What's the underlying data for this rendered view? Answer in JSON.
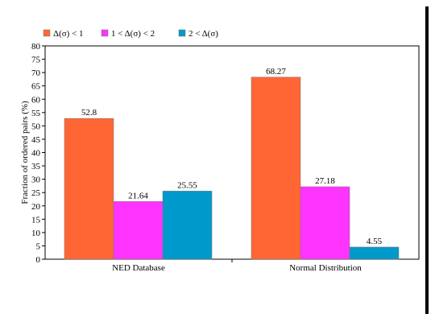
{
  "chart_data": {
    "type": "bar",
    "categories": [
      "NED Database",
      "Normal Distribution"
    ],
    "series": [
      {
        "name": "Δ(σ) < 1",
        "color": "#ff6633",
        "values": [
          52.8,
          68.27
        ]
      },
      {
        "name": "1 < Δ(σ) < 2",
        "color": "#ff33ff",
        "values": [
          21.64,
          27.18
        ]
      },
      {
        "name": "2 < Δ(σ)",
        "color": "#0099cc",
        "values": [
          25.55,
          4.55
        ]
      }
    ],
    "data_labels": [
      [
        "52.8",
        "68.27"
      ],
      [
        "21.64",
        "27.18"
      ],
      [
        "25.55",
        "4.55"
      ]
    ],
    "ylabel": "Fraction of ordered pairs (%)",
    "xlabel": "",
    "ylim": [
      0,
      80
    ],
    "yticks": [
      0,
      5,
      10,
      15,
      20,
      25,
      30,
      35,
      40,
      45,
      50,
      55,
      60,
      65,
      70,
      75,
      80
    ],
    "grid": false,
    "legend_position": "top-left"
  }
}
